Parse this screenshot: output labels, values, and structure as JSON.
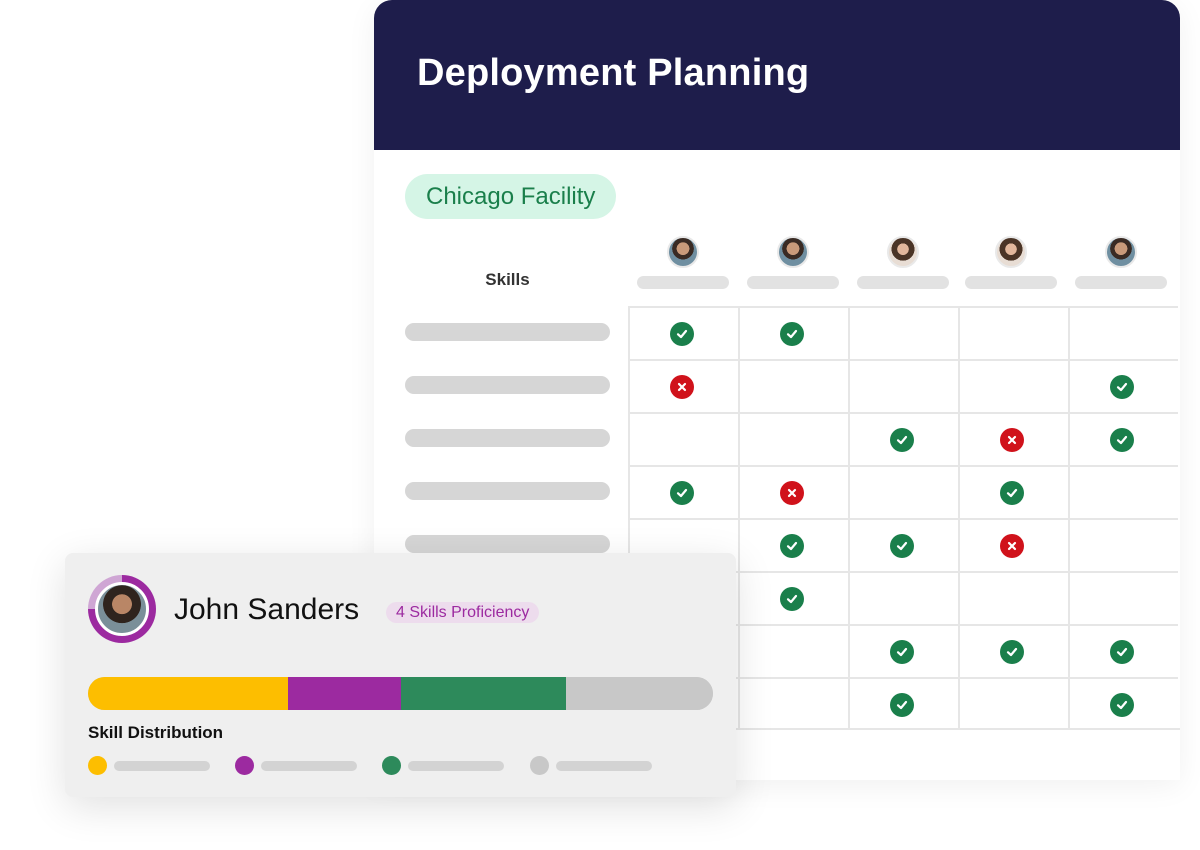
{
  "panel": {
    "title": "Deployment Planning",
    "facility": "Chicago Facility",
    "skills_header": "Skills"
  },
  "employees": [
    {
      "gender": "m"
    },
    {
      "gender": "m"
    },
    {
      "gender": "f"
    },
    {
      "gender": "f"
    },
    {
      "gender": "m"
    }
  ],
  "matrix": [
    [
      "check",
      "check",
      "",
      "",
      ""
    ],
    [
      "cross",
      "",
      "",
      "",
      "check"
    ],
    [
      "",
      "",
      "check",
      "cross",
      "check"
    ],
    [
      "check",
      "cross",
      "",
      "check",
      ""
    ],
    [
      "",
      "check",
      "check",
      "cross",
      ""
    ],
    [
      "",
      "check",
      "",
      "",
      ""
    ],
    [
      "",
      "",
      "check",
      "check",
      "check"
    ],
    [
      "",
      "",
      "check",
      "",
      "check"
    ]
  ],
  "card": {
    "name": "John Sanders",
    "badge": "4 Skills Proficiency",
    "distribution_label": "Skill Distribution",
    "segments": [
      {
        "fraction": 0.32,
        "color": "#fdbe00"
      },
      {
        "fraction": 0.18,
        "color": "#9c2aa0"
      },
      {
        "fraction": 0.265,
        "color": "#2d8a5b"
      },
      {
        "fraction": 0.235,
        "color": "#c8c8c8"
      }
    ]
  },
  "colors": {
    "header_bg": "#1e1d4b",
    "check": "#1a7f4b",
    "cross": "#d0121b",
    "chip_bg": "#d5f5e6",
    "chip_text": "#1a7f4b"
  }
}
